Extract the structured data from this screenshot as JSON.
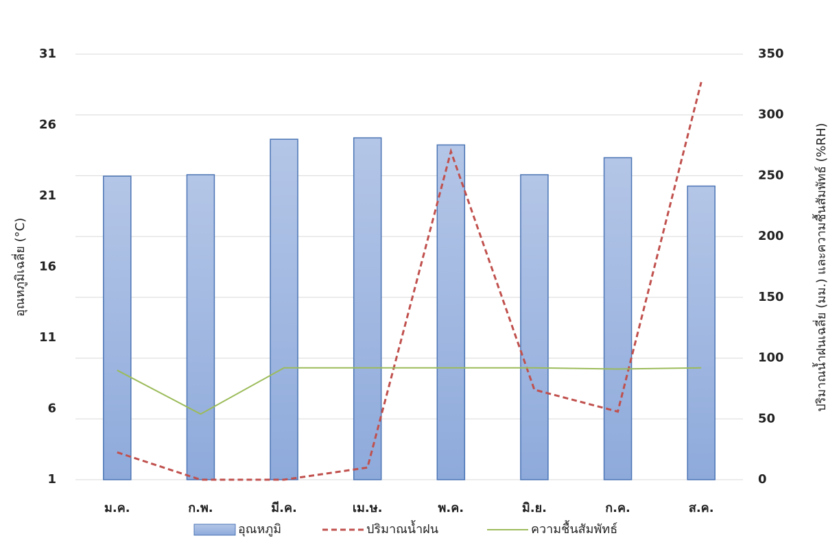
{
  "chart_data": {
    "type": "bar_line",
    "categories": [
      "ม.ค.",
      "ก.พ.",
      "มี.ค.",
      "เม.ษ.",
      "พ.ค.",
      "มิ.ย.",
      "ก.ค.",
      "ส.ค."
    ],
    "series": [
      {
        "name": "อุณหภูมิ",
        "type": "bar",
        "axis": "y",
        "color": "#7f9fd3",
        "values": [
          22.4,
          22.5,
          25.0,
          25.1,
          24.6,
          22.5,
          23.7,
          21.7
        ]
      },
      {
        "name": "ปริมาณน้ำฝน",
        "type": "line",
        "axis": "y2",
        "color": "#c0504d",
        "dashed": true,
        "values": [
          22.5,
          0,
          0,
          10,
          270,
          74,
          56,
          327
        ]
      },
      {
        "name": "ความชื้นสัมพัทธ์",
        "type": "line",
        "axis": "y2",
        "color": "#9bbb59",
        "dashed": false,
        "values": [
          90,
          54,
          92,
          92,
          92,
          92,
          91,
          92
        ]
      }
    ],
    "ylabel": "อุณหภูมิเฉลี่ย (°C)",
    "y2label": "ปริมาณน้ำฝนเฉลี่ย (มม.) และความชื้นสัมพัทธ์ (%RH)",
    "ylim": [
      1,
      31
    ],
    "yticks": [
      1,
      6,
      11,
      16,
      21,
      26,
      31
    ],
    "y2lim": [
      0,
      350
    ],
    "y2ticks": [
      0,
      50,
      100,
      150,
      200,
      250,
      300,
      350
    ],
    "grid": true,
    "legend": "bottom"
  }
}
